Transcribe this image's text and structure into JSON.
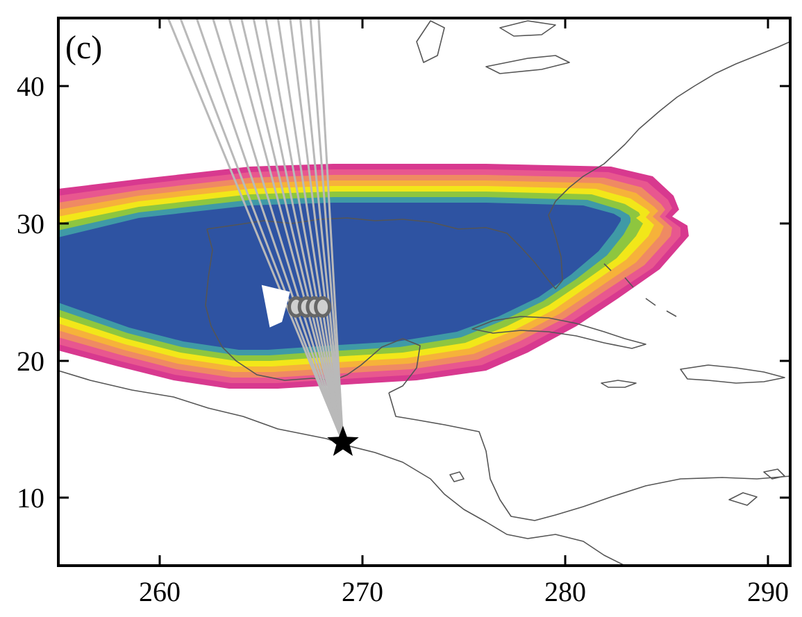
{
  "figure": {
    "panel_label": "(c)",
    "x_ticks": [
      "260",
      "270",
      "280",
      "290"
    ],
    "y_ticks": [
      "10",
      "20",
      "30",
      "40"
    ]
  },
  "map": {
    "projection": "equirectangular",
    "lon_range": [
      255,
      291
    ],
    "lat_range": [
      5,
      45
    ],
    "colors": {
      "inner": "#2e53a2",
      "band_teal": "#3f9aa6",
      "band_green": "#8ec63f",
      "band_yellow": "#f2e719",
      "band_orange": "#f6b23a",
      "band_salmon": "#ef8a63",
      "band_pink": "#e8578f",
      "band_magenta": "#d8398f",
      "ray": "#b9b9b9",
      "coastline": "#555555",
      "source_marker": "#000000",
      "station_marker": "#666666"
    },
    "source_star": {
      "lon": 269.0,
      "lat": 14.0,
      "icon": "star-icon"
    },
    "station_cluster": [
      {
        "lon": 266.7,
        "lat": 23.9
      },
      {
        "lon": 267.2,
        "lat": 23.9
      },
      {
        "lon": 267.6,
        "lat": 23.9
      },
      {
        "lon": 268.0,
        "lat": 23.9
      }
    ],
    "white_box": [
      [
        265.0,
        25.5
      ],
      [
        266.4,
        25.0
      ],
      [
        266.0,
        22.8
      ],
      [
        265.4,
        22.4
      ]
    ],
    "ray_top_lon": [
      260.4,
      261.0,
      261.8,
      262.6,
      263.4,
      264.0,
      264.6,
      265.2,
      265.8,
      266.4,
      266.9,
      267.4,
      267.8
    ],
    "ray_top_lat": 45.0
  }
}
